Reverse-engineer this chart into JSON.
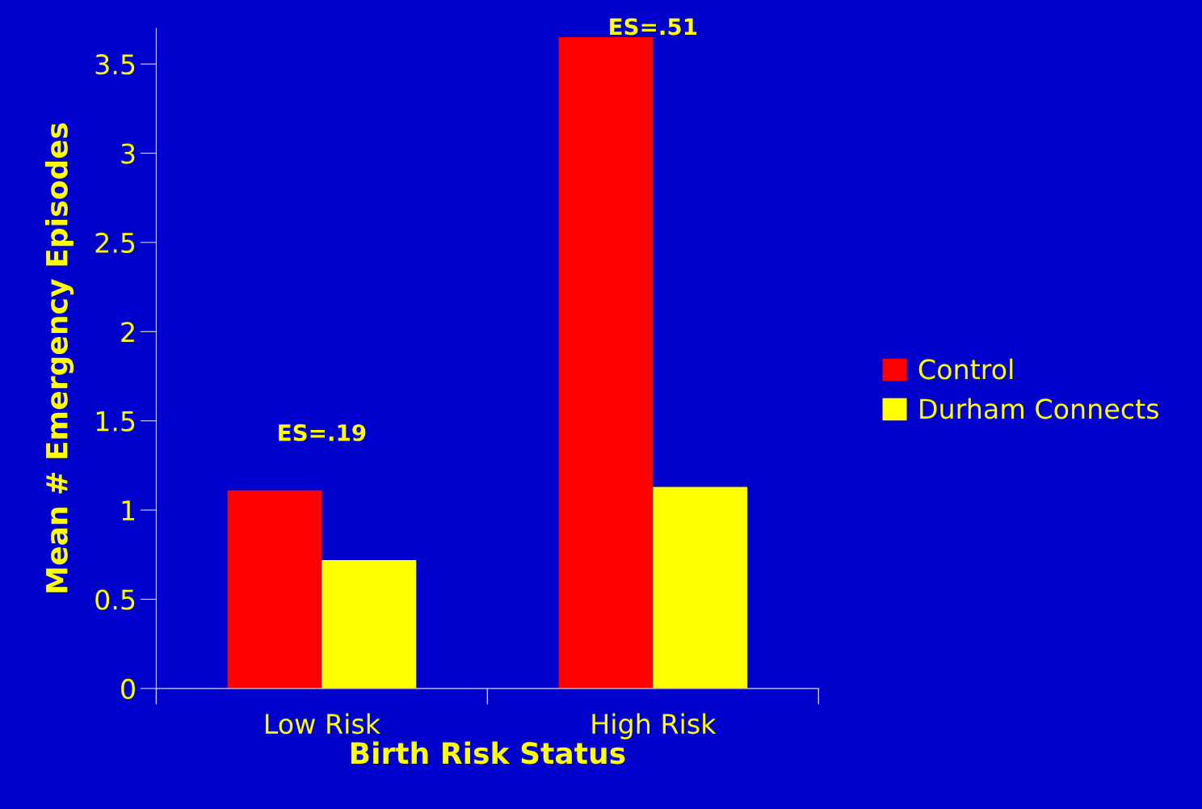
{
  "chart_data": {
    "type": "bar",
    "xlabel": "Birth Risk Status",
    "ylabel": "Mean # Emergency Episodes",
    "categories": [
      "Low Risk",
      "High Risk"
    ],
    "series": [
      {
        "name": "Control",
        "color": "#ff0000",
        "values": [
          1.11,
          3.65
        ]
      },
      {
        "name": "Durham Connects",
        "color": "#ffff00",
        "values": [
          0.72,
          1.13
        ]
      }
    ],
    "ylim": [
      0,
      3.7
    ],
    "yticks": [
      0,
      0.5,
      1,
      1.5,
      2,
      2.5,
      3,
      3.5
    ],
    "annotations": [
      "ES=.19",
      "ES=.51"
    ],
    "grid": false,
    "legend": "right"
  }
}
